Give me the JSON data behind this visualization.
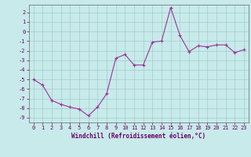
{
  "x": [
    0,
    1,
    2,
    3,
    4,
    5,
    6,
    7,
    8,
    9,
    10,
    11,
    12,
    13,
    14,
    15,
    16,
    17,
    18,
    19,
    20,
    21,
    22,
    23
  ],
  "y": [
    -5.0,
    -5.6,
    -7.2,
    -7.6,
    -7.9,
    -8.1,
    -8.8,
    -7.9,
    -6.5,
    -2.8,
    -2.4,
    -3.5,
    -3.5,
    -1.1,
    -1.0,
    2.5,
    -0.4,
    -2.1,
    -1.5,
    -1.6,
    -1.4,
    -1.4,
    -2.2,
    -1.9
  ],
  "line_color": "#993399",
  "marker": "+",
  "marker_color": "#993399",
  "background_color": "#c8eaea",
  "grid_color": "#a0cccc",
  "xlabel": "Windchill (Refroidissement éolien,°C)",
  "xlim": [
    -0.5,
    23.5
  ],
  "ylim": [
    -9.5,
    2.8
  ],
  "yticks": [
    2,
    1,
    0,
    -1,
    -2,
    -3,
    -4,
    -5,
    -6,
    -7,
    -8,
    -9
  ],
  "xticks": [
    0,
    1,
    2,
    3,
    4,
    5,
    6,
    7,
    8,
    9,
    10,
    11,
    12,
    13,
    14,
    15,
    16,
    17,
    18,
    19,
    20,
    21,
    22,
    23
  ],
  "tick_label_fontsize": 5.0,
  "xlabel_fontsize": 5.5,
  "axis_color": "#660066",
  "spine_color": "#666666",
  "linewidth": 0.8,
  "markersize": 3.0,
  "markeredgewidth": 0.8
}
